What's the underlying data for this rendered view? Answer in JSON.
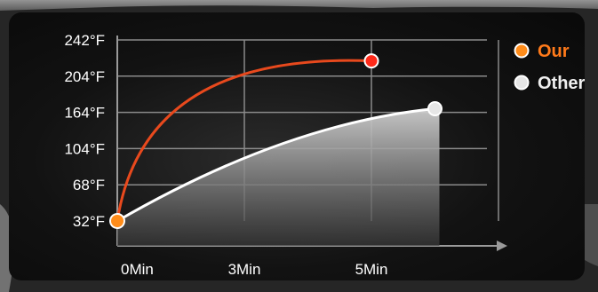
{
  "chart_data": {
    "type": "line",
    "title": "",
    "xlabel": "",
    "ylabel": "",
    "x_ticks": [
      "0Min",
      "3Min",
      "5Min"
    ],
    "y_ticks": [
      "32°F",
      "68°F",
      "104°F",
      "164°F",
      "204°F",
      "242°F"
    ],
    "grid": true,
    "legend_position": "top-right",
    "series": [
      {
        "name": "Our",
        "color": "#e8491d",
        "marker_color": "#ff2a1a",
        "points": [
          {
            "x": "0Min",
            "y": "32°F"
          },
          {
            "x": "5Min",
            "y": "220°F"
          }
        ]
      },
      {
        "name": "Other",
        "color": "#ffffff",
        "marker_color": "#e6e6e6",
        "points": [
          {
            "x": "0Min",
            "y": "32°F"
          },
          {
            "x": "6Min",
            "y": "168°F"
          }
        ]
      }
    ]
  },
  "colors": {
    "our_legend_text": "#ff7a1a",
    "other_legend_text": "#f0f0f0",
    "start_marker": "#ff8c1a",
    "grid": "#8a8a8a"
  }
}
